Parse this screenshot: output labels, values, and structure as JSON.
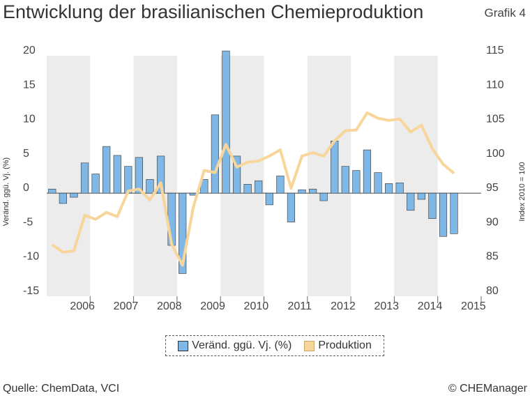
{
  "header": {
    "title": "Entwicklung der brasilianischen Chemieproduktion",
    "badge": "Grafik 4"
  },
  "footer": {
    "source": "Quelle: ChemData, VCI",
    "copyright": "© CHEManager"
  },
  "colors": {
    "bar_fill": "#7fb8e6",
    "bar_stroke": "#333333",
    "line": "#f8d59a",
    "band": "#ececec",
    "zero_line": "#444444"
  },
  "chart_data": {
    "type": "bar+line",
    "categories": [
      "2006",
      "2007",
      "2008",
      "2009",
      "2010",
      "2011",
      "2012",
      "2013",
      "2014",
      "2015"
    ],
    "x": [
      "2006 Q1",
      "2006 Q2",
      "2006 Q3",
      "2006 Q4",
      "2007 Q1",
      "2007 Q2",
      "2007 Q3",
      "2007 Q4",
      "2008 Q1",
      "2008 Q2",
      "2008 Q3",
      "2008 Q4",
      "2009 Q1",
      "2009 Q2",
      "2009 Q3",
      "2009 Q4",
      "2010 Q1",
      "2010 Q2",
      "2010 Q3",
      "2010 Q4",
      "2011 Q1",
      "2011 Q2",
      "2011 Q3",
      "2011 Q4",
      "2012 Q1",
      "2012 Q2",
      "2012 Q3",
      "2012 Q4",
      "2013 Q1",
      "2013 Q2",
      "2013 Q3",
      "2013 Q4",
      "2014 Q1",
      "2014 Q2",
      "2014 Q3",
      "2014 Q4",
      "2015 Q1",
      "2015 Q2"
    ],
    "ylabel_left": "Veränd. ggü. Vj. (%)",
    "ylabel_right": "Index 2010 = 100",
    "ylim_left": [
      -15,
      20
    ],
    "ylim_right": [
      80,
      115
    ],
    "yticks_left": [
      20,
      15,
      10,
      5,
      0,
      -5,
      -10,
      -15
    ],
    "yticks_right": [
      115,
      110,
      105,
      100,
      95,
      90,
      85,
      80
    ],
    "grid": false,
    "shaded_alternate_years": true,
    "legend_position": "bottom",
    "series": [
      {
        "name": "Veränd. ggü. Vj. (%)",
        "kind": "bar",
        "axis": "left",
        "values": [
          0.6,
          -1.5,
          -0.6,
          4.4,
          2.8,
          6.8,
          5.5,
          3.9,
          5.2,
          2.0,
          5.4,
          -7.6,
          -11.7,
          -0.3,
          2.0,
          11.4,
          20.7,
          5.4,
          1.3,
          1.8,
          -1.7,
          2.5,
          -4.2,
          0.5,
          0.6,
          -1.1,
          7.6,
          3.9,
          3.3,
          6.3,
          3.0,
          1.4,
          1.5,
          -2.5,
          -0.9,
          -3.7,
          -6.3,
          -5.9
        ]
      },
      {
        "name": "Produktion",
        "kind": "line",
        "axis": "right",
        "values": [
          87.5,
          86.4,
          86.6,
          91.8,
          91.2,
          92.2,
          91.6,
          95.3,
          95.6,
          94.0,
          96.5,
          87.6,
          84.5,
          93.0,
          98.3,
          98.0,
          102.1,
          98.8,
          99.5,
          99.7,
          100.4,
          101.3,
          95.7,
          100.4,
          100.9,
          100.4,
          102.6,
          104.1,
          104.2,
          106.7,
          105.9,
          105.6,
          105.8,
          103.9,
          104.9,
          101.5,
          99.2,
          97.9
        ]
      }
    ]
  }
}
